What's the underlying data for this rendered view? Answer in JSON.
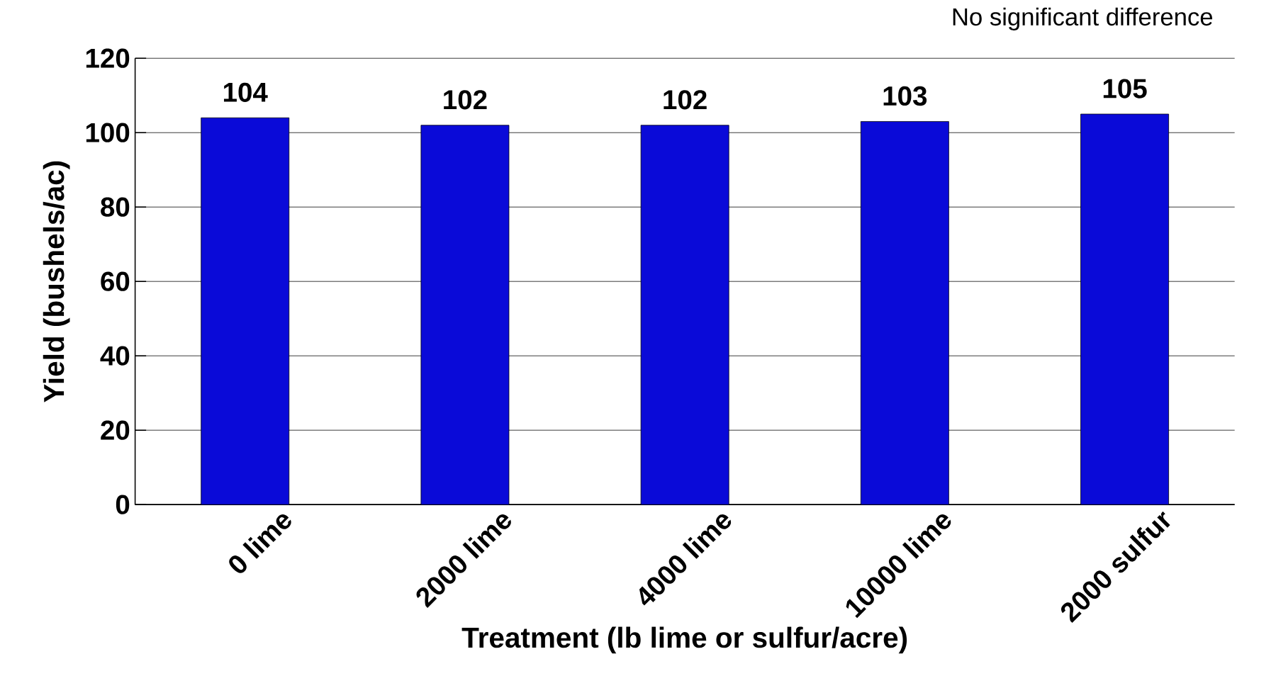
{
  "chart_data": {
    "type": "bar",
    "xlabel": "Treatment (lb lime or sulfur/acre)",
    "ylabel": "Yield (bushels/ac)",
    "annotations": [
      "No significant difference"
    ],
    "categories": [
      "0 lime",
      "2000 lime",
      "4000 lime",
      "10000 lime",
      "2000 sulfur"
    ],
    "values": [
      104,
      102,
      102,
      103,
      105
    ],
    "color": "#0a0ad8",
    "ylim": [
      0,
      120
    ],
    "yticks": [
      0,
      20,
      40,
      60,
      80,
      100,
      120
    ],
    "grid": "y",
    "data_labels": true
  }
}
